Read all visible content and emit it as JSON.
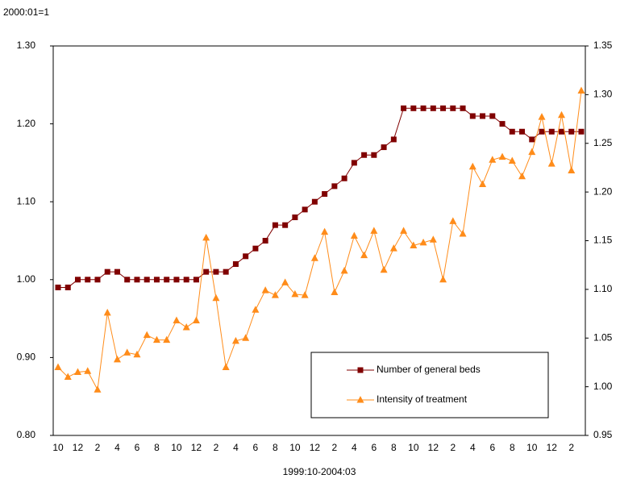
{
  "chart_data": {
    "type": "line",
    "note_label": "2000:01=1",
    "x_label": "1999:10-2004:03",
    "categories": [
      "10",
      null,
      "12",
      null,
      "2",
      null,
      "4",
      null,
      "6",
      null,
      "8",
      null,
      "10",
      null,
      "12",
      null,
      "2",
      null,
      "4",
      null,
      "6",
      null,
      "8",
      null,
      "10",
      null,
      "12",
      null,
      "2",
      null,
      "4",
      null,
      "6",
      null,
      "8",
      null,
      "10",
      null,
      "12",
      null,
      "2",
      null,
      "4",
      null,
      "6",
      null,
      "8",
      null,
      "10",
      null,
      "12",
      null,
      "2",
      null
    ],
    "series": [
      {
        "name": "Number of general beds",
        "color": "#800000",
        "marker": "square",
        "axis": "y",
        "values": [
          0.99,
          0.99,
          1.0,
          1.0,
          1.0,
          1.01,
          1.01,
          1.0,
          1.0,
          1.0,
          1.0,
          1.0,
          1.0,
          1.0,
          1.0,
          1.01,
          1.01,
          1.01,
          1.02,
          1.03,
          1.04,
          1.05,
          1.07,
          1.07,
          1.08,
          1.09,
          1.1,
          1.11,
          1.12,
          1.13,
          1.15,
          1.16,
          1.16,
          1.17,
          1.18,
          1.22,
          1.22,
          1.22,
          1.22,
          1.22,
          1.22,
          1.22,
          1.21,
          1.21,
          1.21,
          1.2,
          1.19,
          1.19,
          1.18,
          1.19,
          1.19,
          1.19,
          1.19,
          1.19
        ]
      },
      {
        "name": "Intensity of treatment",
        "color": "#ff8c1a",
        "marker": "triangle",
        "axis": "y2",
        "values": [
          1.02,
          1.01,
          1.015,
          1.016,
          0.997,
          1.076,
          1.028,
          1.035,
          1.033,
          1.053,
          1.048,
          1.048,
          1.068,
          1.061,
          1.068,
          1.153,
          1.091,
          1.02,
          1.047,
          1.05,
          1.079,
          1.099,
          1.094,
          1.107,
          1.095,
          1.094,
          1.132,
          1.159,
          1.097,
          1.119,
          1.155,
          1.135,
          1.16,
          1.12,
          1.142,
          1.16,
          1.145,
          1.148,
          1.151,
          1.11,
          1.17,
          1.157,
          1.226,
          1.208,
          1.233,
          1.236,
          1.232,
          1.216,
          1.241,
          1.277,
          1.229,
          1.279,
          1.222,
          1.304
        ]
      }
    ],
    "ylim": [
      0.8,
      1.3
    ],
    "yticks": [
      {
        "value": 0.8,
        "label": "0.80"
      },
      {
        "value": 0.9,
        "label": "0.90"
      },
      {
        "value": 1.0,
        "label": "1.00"
      },
      {
        "value": 1.1,
        "label": "1.10"
      },
      {
        "value": 1.2,
        "label": "1.20"
      },
      {
        "value": 1.3,
        "label": "1.30"
      }
    ],
    "y2lim": [
      0.95,
      1.35
    ],
    "y2ticks": [
      {
        "value": 0.95,
        "label": "0.95"
      },
      {
        "value": 1.0,
        "label": "1.00"
      },
      {
        "value": 1.05,
        "label": "1.05"
      },
      {
        "value": 1.1,
        "label": "1.10"
      },
      {
        "value": 1.15,
        "label": "1.15"
      },
      {
        "value": 1.2,
        "label": "1.20"
      },
      {
        "value": 1.25,
        "label": "1.25"
      },
      {
        "value": 1.3,
        "label": "1.30"
      },
      {
        "value": 1.35,
        "label": "1.35"
      }
    ],
    "grid": false,
    "legend": "lower right"
  }
}
